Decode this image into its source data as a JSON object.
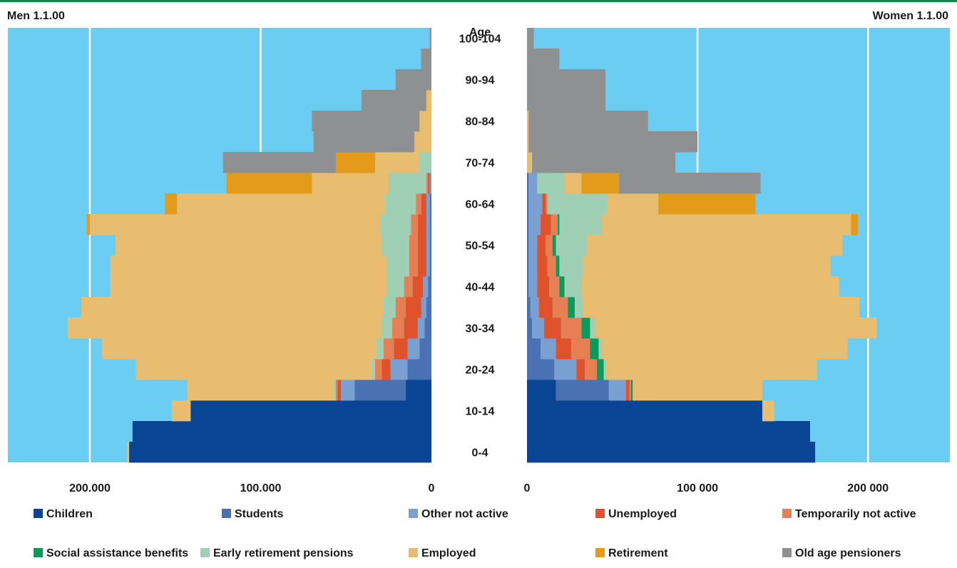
{
  "chart_data": {
    "type": "bar",
    "left_title": "Men 1.1.00",
    "right_title": "Women 1.1.00",
    "age_axis_title": "Age",
    "age_groups": [
      "0-4",
      "5-9",
      "10-14",
      "15-19",
      "20-24",
      "25-29",
      "30-34",
      "35-39",
      "40-44",
      "45-49",
      "50-54",
      "55-59",
      "60-64",
      "65-69",
      "70-74",
      "75-79",
      "80-84",
      "85-89",
      "90-94",
      "95-99",
      "100-104"
    ],
    "age_tick_labels": [
      "0-4",
      "10-14",
      "20-24",
      "30-34",
      "40-44",
      "50-54",
      "60-64",
      "70-74",
      "80-84",
      "90-94",
      "100-104"
    ],
    "left_tick_labels": [
      "200.000",
      "100.000",
      "0"
    ],
    "right_tick_labels": [
      "0",
      "100 000",
      "200 000"
    ],
    "xlim": [
      0,
      248000
    ],
    "gridlines": [
      100000,
      200000
    ],
    "series_names": [
      "Children",
      "Students",
      "Other not active",
      "Unemployed",
      "Temporarily not active",
      "Social assistance benefits",
      "Early retirement pensions",
      "Employed",
      "Retirement",
      "Old age pensioners"
    ],
    "series_colors": [
      "#0a4595",
      "#4a72b2",
      "#7aa0d2",
      "#e0522c",
      "#e77f55",
      "#0c9a5b",
      "#9fd0b6",
      "#e8bd70",
      "#e59b1a",
      "#8f9092"
    ],
    "men": [
      [
        177000,
        0,
        0,
        0,
        0,
        0,
        0,
        1000,
        0,
        0
      ],
      [
        175000,
        0,
        0,
        0,
        0,
        0,
        0,
        0,
        0,
        0
      ],
      [
        141000,
        0,
        0,
        0,
        0,
        0,
        0,
        11000,
        0,
        0
      ],
      [
        15000,
        30000,
        8000,
        2000,
        1000,
        0,
        1000,
        86000,
        0,
        0
      ],
      [
        0,
        14000,
        10000,
        5000,
        4000,
        0,
        2000,
        138000,
        0,
        0
      ],
      [
        0,
        7000,
        7000,
        8000,
        6000,
        0,
        4000,
        161000,
        0,
        0
      ],
      [
        0,
        4000,
        4000,
        8000,
        7000,
        0,
        6000,
        184000,
        0,
        0
      ],
      [
        0,
        3000,
        3000,
        9000,
        6000,
        0,
        7000,
        177000,
        0,
        0
      ],
      [
        0,
        2000,
        3000,
        6000,
        5000,
        0,
        10000,
        162000,
        0,
        0
      ],
      [
        0,
        1000,
        2000,
        5000,
        5000,
        0,
        13000,
        162000,
        0,
        0
      ],
      [
        0,
        1000,
        2000,
        5000,
        5000,
        0,
        16000,
        156000,
        0,
        0
      ],
      [
        0,
        1000,
        2000,
        5000,
        4000,
        0,
        18000,
        170000,
        2000,
        0
      ],
      [
        0,
        1000,
        2000,
        3000,
        3000,
        0,
        18000,
        122000,
        7000,
        0
      ],
      [
        0,
        0,
        1000,
        1000,
        1000,
        0,
        22000,
        45000,
        50000,
        0
      ],
      [
        0,
        0,
        0,
        0,
        0,
        0,
        7000,
        26000,
        23000,
        66000
      ],
      [
        0,
        0,
        0,
        0,
        0,
        0,
        0,
        10000,
        0,
        59000
      ],
      [
        0,
        0,
        0,
        0,
        0,
        0,
        0,
        7000,
        0,
        63000
      ],
      [
        0,
        0,
        0,
        0,
        0,
        0,
        0,
        3000,
        0,
        38000
      ],
      [
        0,
        0,
        0,
        0,
        0,
        0,
        0,
        0,
        0,
        21000
      ],
      [
        0,
        0,
        0,
        0,
        0,
        0,
        0,
        0,
        0,
        6000
      ],
      [
        0,
        0,
        0,
        0,
        0,
        0,
        0,
        0,
        0,
        1000
      ]
    ],
    "women": [
      [
        169000,
        0,
        0,
        0,
        0,
        0,
        0,
        0,
        0,
        0
      ],
      [
        166000,
        0,
        0,
        0,
        0,
        0,
        0,
        0,
        0,
        0
      ],
      [
        138000,
        0,
        0,
        0,
        0,
        0,
        0,
        7000,
        0,
        0
      ],
      [
        17000,
        31000,
        10000,
        2000,
        1000,
        1000,
        0,
        76000,
        0,
        0
      ],
      [
        0,
        16000,
        13000,
        5000,
        7000,
        4000,
        1000,
        124000,
        0,
        0
      ],
      [
        0,
        8000,
        9000,
        9000,
        11000,
        5000,
        2000,
        144000,
        0,
        0
      ],
      [
        0,
        3000,
        7000,
        10000,
        12000,
        5000,
        3000,
        165000,
        0,
        0
      ],
      [
        0,
        2000,
        5000,
        8000,
        9000,
        4000,
        5000,
        162000,
        0,
        0
      ],
      [
        0,
        1000,
        5000,
        7000,
        6000,
        3000,
        10000,
        151000,
        0,
        0
      ],
      [
        0,
        1000,
        5000,
        6000,
        5000,
        2000,
        14000,
        145000,
        0,
        0
      ],
      [
        0,
        1000,
        5000,
        5000,
        4000,
        2000,
        18000,
        150000,
        0,
        0
      ],
      [
        0,
        1000,
        7000,
        6000,
        4000,
        1000,
        25000,
        146000,
        4000,
        0
      ],
      [
        0,
        1000,
        8000,
        2000,
        1000,
        0,
        35000,
        30000,
        57000,
        0
      ],
      [
        0,
        1000,
        5000,
        0,
        0,
        0,
        16000,
        10000,
        22000,
        83000
      ],
      [
        0,
        0,
        0,
        0,
        0,
        0,
        0,
        3000,
        0,
        84000
      ],
      [
        0,
        0,
        0,
        0,
        0,
        0,
        0,
        1000,
        0,
        99000
      ],
      [
        0,
        0,
        0,
        0,
        0,
        0,
        0,
        1000,
        0,
        70000
      ],
      [
        0,
        0,
        0,
        0,
        0,
        0,
        0,
        0,
        0,
        46000
      ],
      [
        0,
        0,
        0,
        0,
        0,
        0,
        0,
        0,
        0,
        46000
      ],
      [
        0,
        0,
        0,
        0,
        0,
        0,
        0,
        0,
        0,
        19000
      ],
      [
        0,
        0,
        0,
        0,
        0,
        0,
        0,
        0,
        0,
        4000
      ]
    ],
    "legend": [
      {
        "label": "Children",
        "color": "#0a4595"
      },
      {
        "label": "Students",
        "color": "#4a72b2"
      },
      {
        "label": "Other not active",
        "color": "#7aa0d2"
      },
      {
        "label": "Unemployed",
        "color": "#e0522c"
      },
      {
        "label": "Temporarily not active",
        "color": "#e77f55"
      },
      {
        "label": "Social assistance benefits",
        "color": "#0c9a5b"
      },
      {
        "label": "Early retirement pensions",
        "color": "#9fd0b6"
      },
      {
        "label": "Employed",
        "color": "#e8bd70"
      },
      {
        "label": "Retirement",
        "color": "#e59b1a"
      },
      {
        "label": "Old age pensioners",
        "color": "#8f9092"
      }
    ],
    "plot_background": "#6bcdf2",
    "grid": true,
    "legend_position": "bottom"
  }
}
